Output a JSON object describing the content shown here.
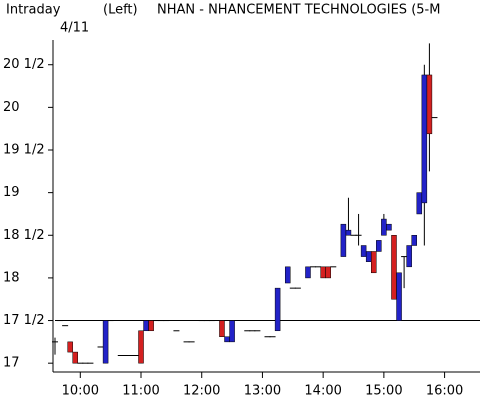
{
  "chart_data": {
    "type": "candlestick",
    "title": "NHAN - NHANCEMENT TECHNOLOGIES (5-M",
    "subtitle": "Intraday",
    "axis_side": "(Left)",
    "date": "4/11",
    "up_color": "#2222c8",
    "down_color": "#d42020",
    "reference_line": 17.5,
    "xlim": [
      "9:35",
      "16:35"
    ],
    "xticks": [
      "10:00",
      "11:00",
      "12:00",
      "13:00",
      "14:00",
      "15:00",
      "16:00"
    ],
    "ylim": [
      16.92,
      20.79
    ],
    "yticks": [
      17,
      {
        "value": 17.5,
        "label": "17 1/2"
      },
      18,
      {
        "value": 18.5,
        "label": "18 1/2"
      },
      19,
      {
        "value": 19.5,
        "label": "19 1/2"
      },
      20,
      {
        "value": 20.5,
        "label": "20 1/2"
      }
    ],
    "x": [
      "9:35",
      "9:40",
      "9:45",
      "9:50",
      "9:55",
      "10:00",
      "10:05",
      "10:10",
      "10:20",
      "10:25",
      "10:30",
      "10:40",
      "10:45",
      "10:50",
      "10:55",
      "11:00",
      "11:05",
      "11:10",
      "11:15",
      "11:20",
      "11:25",
      "11:35",
      "11:45",
      "11:50",
      "12:00",
      "12:05",
      "12:10",
      "12:20",
      "12:25",
      "12:30",
      "12:45",
      "12:50",
      "12:55",
      "13:05",
      "13:10",
      "13:15",
      "13:25",
      "13:30",
      "13:35",
      "13:45",
      "13:50",
      "13:55",
      "14:00",
      "14:05",
      "14:10",
      "14:20",
      "14:25",
      "14:30",
      "14:35",
      "14:40",
      "14:45",
      "14:50",
      "14:55",
      "15:00",
      "15:05",
      "15:10",
      "15:15",
      "15:20",
      "15:25",
      "15:30",
      "15:35",
      "15:40",
      "15:45",
      "15:50"
    ],
    "open": [
      17.25,
      17.5,
      17.44,
      17.25,
      17.13,
      17,
      17,
      17,
      17.19,
      17,
      17.5,
      17.09,
      17.09,
      17.09,
      17.09,
      17.38,
      17.38,
      17.5,
      17.5,
      17.5,
      17.5,
      17.38,
      17.25,
      17.25,
      17.5,
      17.5,
      17.5,
      17.5,
      17.25,
      17.25,
      17.38,
      17.38,
      17.38,
      17.31,
      17.31,
      17.38,
      17.94,
      17.88,
      17.88,
      18,
      18.13,
      18.13,
      18.13,
      18.13,
      18.13,
      18.25,
      18.5,
      18.5,
      18.5,
      18.25,
      18.19,
      18.31,
      18.31,
      18.5,
      18.56,
      18.5,
      17.5,
      18.25,
      18.13,
      18.38,
      18.75,
      18.88,
      20.38,
      19.88
    ],
    "high": [
      17.3,
      17.5,
      17.44,
      17.25,
      17.13,
      17,
      17,
      17,
      17.19,
      17.5,
      17.5,
      17.09,
      17.09,
      17.09,
      17.09,
      17.38,
      17.5,
      17.5,
      17.5,
      17.5,
      17.5,
      17.38,
      17.25,
      17.25,
      17.5,
      17.5,
      17.5,
      17.5,
      17.31,
      17.5,
      17.38,
      17.38,
      17.38,
      17.31,
      17.31,
      17.88,
      18.13,
      17.88,
      17.88,
      18.13,
      18.13,
      18.13,
      18.13,
      18.13,
      18.13,
      18.63,
      18.94,
      18.5,
      18.75,
      18.38,
      18.31,
      18.31,
      18.44,
      18.75,
      18.63,
      18.5,
      18.06,
      18.25,
      18.38,
      18.5,
      19,
      20.5,
      20.75,
      19.88
    ],
    "low": [
      17.1,
      17.5,
      17.44,
      17.13,
      17,
      17,
      17,
      17,
      17.19,
      17,
      17.5,
      17.09,
      17.09,
      17.09,
      17.09,
      17,
      17.38,
      17.38,
      17.5,
      17.5,
      17.5,
      17.38,
      17.25,
      17.25,
      17.5,
      17.5,
      17.5,
      17.31,
      17.25,
      17.25,
      17.38,
      17.38,
      17.38,
      17.31,
      17.31,
      17.38,
      17.94,
      17.88,
      17.88,
      18,
      18.13,
      18.13,
      18,
      18,
      18.13,
      18.25,
      18.5,
      18.5,
      18.38,
      18.25,
      18.19,
      18.06,
      18.31,
      18.5,
      18.56,
      17.75,
      17.5,
      17.88,
      18.13,
      18.38,
      18.75,
      18.38,
      19.25,
      19.88
    ],
    "close": [
      17.25,
      17.5,
      17.44,
      17.13,
      17,
      17,
      17,
      17,
      17.19,
      17.5,
      17.5,
      17.09,
      17.09,
      17.09,
      17.09,
      17,
      17.5,
      17.38,
      17.5,
      17.5,
      17.5,
      17.38,
      17.25,
      17.25,
      17.5,
      17.5,
      17.5,
      17.31,
      17.31,
      17.5,
      17.38,
      17.38,
      17.38,
      17.31,
      17.31,
      17.88,
      18.13,
      17.88,
      17.88,
      18.13,
      18.13,
      18.13,
      18,
      18,
      18.13,
      18.63,
      18.56,
      18.5,
      18.5,
      18.38,
      18.31,
      18.06,
      18.44,
      18.69,
      18.63,
      17.75,
      18.06,
      18.25,
      18.38,
      18.5,
      19,
      20.38,
      19.69,
      19.88
    ]
  }
}
